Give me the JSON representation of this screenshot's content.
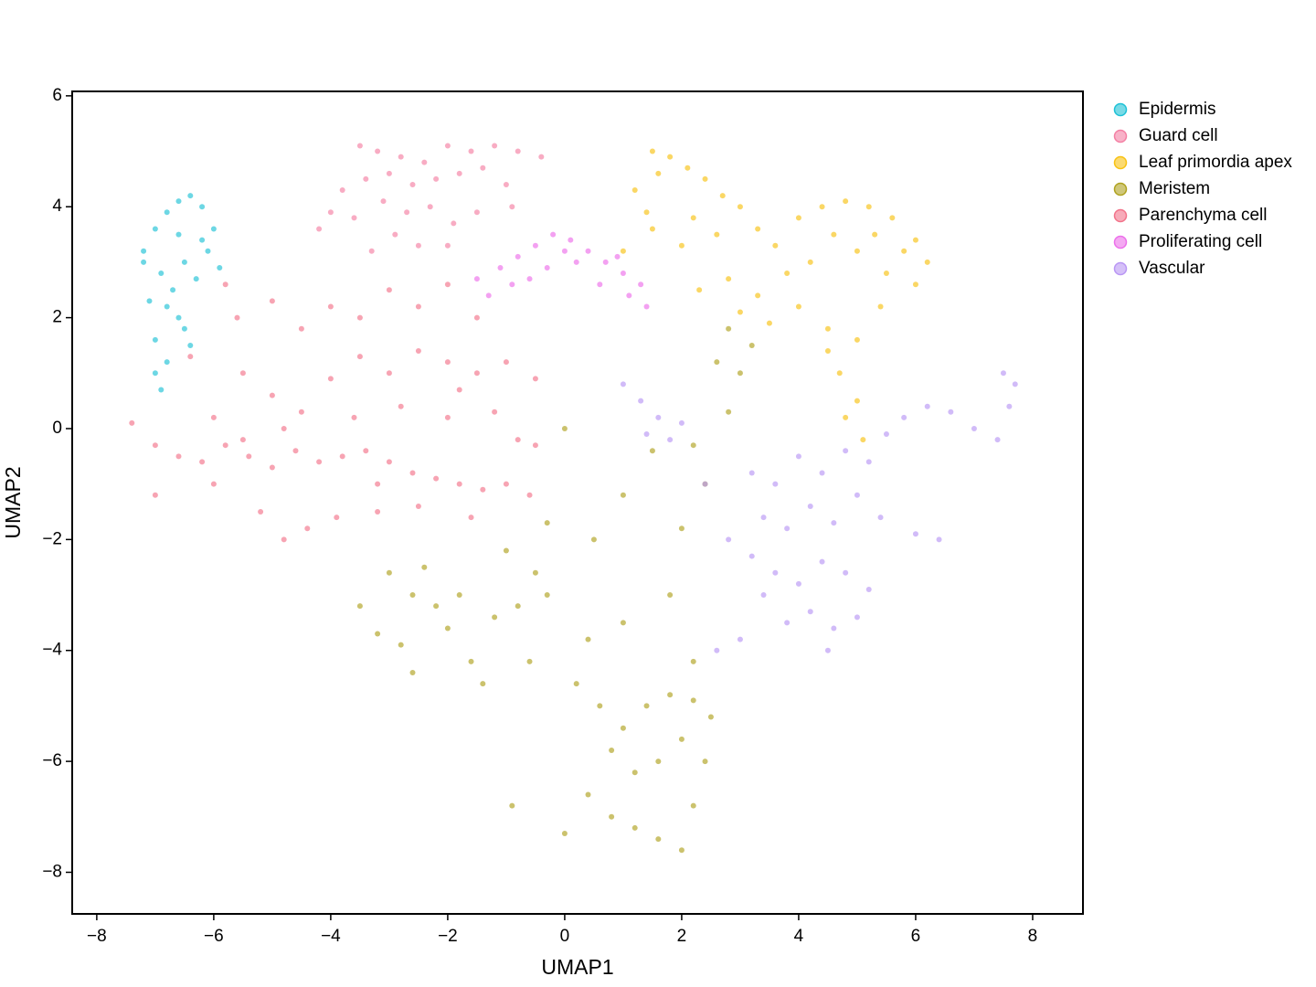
{
  "chart_data": {
    "type": "scatter",
    "x_label": "UMAP1",
    "y_label": "UMAP2",
    "xlim": [
      -8.42,
      8.86
    ],
    "ylim": [
      -8.75,
      6.08
    ],
    "xticks": [
      {
        "value": -8,
        "label": "−8"
      },
      {
        "value": -6,
        "label": "−6"
      },
      {
        "value": -4,
        "label": "−4"
      },
      {
        "value": -2,
        "label": "−2"
      },
      0,
      2,
      4,
      6,
      8
    ],
    "yticks": [
      {
        "value": -8,
        "label": "−8"
      },
      {
        "value": -6,
        "label": "−6"
      },
      {
        "value": -4,
        "label": "−4"
      },
      {
        "value": -2,
        "label": "−2"
      },
      0,
      2,
      4,
      6
    ],
    "grid": false,
    "legend_position": "right",
    "series": [
      {
        "name": "Epidermis",
        "color": "#1EC1D6",
        "x": [
          -7.2,
          -7.0,
          -6.8,
          -6.6,
          -6.4,
          -6.2,
          -6.0,
          -6.1,
          -6.5,
          -6.9,
          -7.1,
          -6.7,
          -6.3,
          -5.9,
          -6.6,
          -7.0,
          -6.8,
          -6.4,
          -7.0,
          -6.9,
          -6.2,
          -6.6,
          -6.8,
          -7.2,
          -6.5
        ],
        "y": [
          3.2,
          3.6,
          3.9,
          4.1,
          4.2,
          4.0,
          3.6,
          3.2,
          3.0,
          2.8,
          2.3,
          2.5,
          2.7,
          2.9,
          2.0,
          1.6,
          1.2,
          1.5,
          1.0,
          0.7,
          3.4,
          3.5,
          2.2,
          3.0,
          1.8
        ]
      },
      {
        "name": "Guard cell",
        "color": "#F47FA3",
        "x": [
          -3.5,
          -3.2,
          -2.8,
          -2.4,
          -2.0,
          -1.6,
          -1.2,
          -0.8,
          -0.4,
          -3.8,
          -4.0,
          -3.4,
          -3.0,
          -2.6,
          -2.2,
          -1.8,
          -1.4,
          -4.2,
          -3.6,
          -3.1,
          -2.7,
          -2.3,
          -1.9,
          -1.5,
          -1.0,
          -2.9,
          -2.5,
          -3.3,
          -0.9,
          -2.0
        ],
        "y": [
          5.1,
          5.0,
          4.9,
          4.8,
          5.1,
          5.0,
          5.1,
          5.0,
          4.9,
          4.3,
          3.9,
          4.5,
          4.6,
          4.4,
          4.5,
          4.6,
          4.7,
          3.6,
          3.8,
          4.1,
          3.9,
          4.0,
          3.7,
          3.9,
          4.4,
          3.5,
          3.3,
          3.2,
          4.0,
          3.3
        ]
      },
      {
        "name": "Leaf primordia apex",
        "color": "#F8C213",
        "x": [
          1.5,
          1.8,
          2.1,
          1.6,
          1.2,
          2.4,
          2.7,
          3.0,
          2.2,
          1.5,
          1.0,
          2.0,
          2.6,
          3.3,
          3.6,
          4.0,
          4.4,
          4.8,
          5.2,
          5.6,
          6.0,
          6.2,
          6.0,
          5.5,
          5.0,
          4.6,
          4.2,
          3.8,
          3.3,
          2.8,
          2.3,
          4.0,
          4.5,
          5.0,
          5.4,
          5.8,
          3.5,
          4.7,
          5.0,
          4.8,
          5.1,
          4.5,
          3.0,
          1.4,
          5.3
        ],
        "y": [
          5.0,
          4.9,
          4.7,
          4.6,
          4.3,
          4.5,
          4.2,
          4.0,
          3.8,
          3.6,
          3.2,
          3.3,
          3.5,
          3.6,
          3.3,
          3.8,
          4.0,
          4.1,
          4.0,
          3.8,
          3.4,
          3.0,
          2.6,
          2.8,
          3.2,
          3.5,
          3.0,
          2.8,
          2.4,
          2.7,
          2.5,
          2.2,
          1.8,
          1.6,
          2.2,
          3.2,
          1.9,
          1.0,
          0.5,
          0.2,
          -0.2,
          1.4,
          2.1,
          3.9,
          3.5
        ]
      },
      {
        "name": "Meristem",
        "color": "#AFA21F",
        "x": [
          -3.5,
          -3.2,
          -2.8,
          -3.0,
          -2.6,
          -2.2,
          -2.4,
          -2.0,
          -1.6,
          -1.4,
          -1.8,
          -1.2,
          -0.8,
          -0.5,
          -0.3,
          -1.0,
          -0.6,
          -2.6,
          0.2,
          0.6,
          1.0,
          1.4,
          1.8,
          2.2,
          2.0,
          1.6,
          1.2,
          0.8,
          0.4,
          0.8,
          1.2,
          1.6,
          2.0,
          2.2,
          2.4,
          2.5,
          0.0,
          -0.9,
          0.4,
          1.0,
          0.5,
          1.0,
          1.5,
          2.0,
          2.4,
          2.8,
          3.0,
          2.6,
          3.2,
          2.8,
          2.2,
          0.0,
          -0.3,
          1.8,
          2.2
        ],
        "y": [
          -3.2,
          -3.7,
          -3.9,
          -2.6,
          -3.0,
          -3.2,
          -2.5,
          -3.6,
          -4.2,
          -4.6,
          -3.0,
          -3.4,
          -3.2,
          -2.6,
          -3.0,
          -2.2,
          -4.2,
          -4.4,
          -4.6,
          -5.0,
          -5.4,
          -5.0,
          -4.8,
          -4.9,
          -5.6,
          -6.0,
          -6.2,
          -5.8,
          -6.6,
          -7.0,
          -7.2,
          -7.4,
          -7.6,
          -6.8,
          -6.0,
          -5.2,
          -7.3,
          -6.8,
          -3.8,
          -3.5,
          -2.0,
          -1.2,
          -0.4,
          -1.8,
          -1.0,
          0.3,
          1.0,
          1.2,
          1.5,
          1.8,
          -0.3,
          0.0,
          -1.7,
          -3.0,
          -4.2
        ]
      },
      {
        "name": "Parenchyma cell",
        "color": "#F2738A",
        "x": [
          -7.4,
          -7.0,
          -6.6,
          -6.2,
          -5.8,
          -5.4,
          -5.0,
          -4.6,
          -4.2,
          -3.8,
          -3.4,
          -3.0,
          -2.6,
          -2.2,
          -1.8,
          -1.4,
          -1.0,
          -0.6,
          -7.0,
          -6.0,
          -5.2,
          -4.8,
          -4.4,
          -3.9,
          -3.2,
          -2.5,
          -1.6,
          -5.5,
          -5.0,
          -4.5,
          -4.0,
          -3.5,
          -3.0,
          -2.5,
          -2.0,
          -1.5,
          -1.0,
          -0.5,
          -5.6,
          -5.0,
          -4.5,
          -4.0,
          -3.5,
          -3.0,
          -2.5,
          -2.0,
          -1.5,
          -6.0,
          -5.5,
          -4.8,
          -3.6,
          -2.8,
          -2.0,
          -1.2,
          -0.5,
          -5.8,
          -3.2,
          -1.8,
          -0.8,
          -6.4
        ],
        "y": [
          0.1,
          -0.3,
          -0.5,
          -0.6,
          -0.3,
          -0.5,
          -0.7,
          -0.4,
          -0.6,
          -0.5,
          -0.4,
          -0.6,
          -0.8,
          -0.9,
          -1.0,
          -1.1,
          -1.0,
          -1.2,
          -1.2,
          -1.0,
          -1.5,
          -2.0,
          -1.8,
          -1.6,
          -1.5,
          -1.4,
          -1.6,
          1.0,
          0.6,
          0.3,
          0.9,
          1.3,
          1.0,
          1.4,
          1.2,
          1.0,
          1.2,
          0.9,
          2.0,
          2.3,
          1.8,
          2.2,
          2.0,
          2.5,
          2.2,
          2.6,
          2.0,
          0.2,
          -0.2,
          0.0,
          0.2,
          0.4,
          0.2,
          0.3,
          -0.3,
          2.6,
          -1.0,
          0.7,
          -0.2,
          1.3
        ]
      },
      {
        "name": "Proliferating cell",
        "color": "#EC6FEA",
        "x": [
          -1.5,
          -1.1,
          -0.8,
          -0.5,
          -0.2,
          0.1,
          0.4,
          0.7,
          1.0,
          1.3,
          -0.9,
          -0.3,
          0.2,
          0.6,
          1.1,
          -1.3,
          0.0,
          -0.6,
          0.9,
          1.4
        ],
        "y": [
          2.7,
          2.9,
          3.1,
          3.3,
          3.5,
          3.4,
          3.2,
          3.0,
          2.8,
          2.6,
          2.6,
          2.9,
          3.0,
          2.6,
          2.4,
          2.4,
          3.2,
          2.7,
          3.1,
          2.2
        ]
      },
      {
        "name": "Vascular",
        "color": "#B996F4",
        "x": [
          1.0,
          1.3,
          1.6,
          1.8,
          1.4,
          2.0,
          3.2,
          3.6,
          4.0,
          4.4,
          4.8,
          5.2,
          3.4,
          3.8,
          4.2,
          4.6,
          5.0,
          5.4,
          2.8,
          3.2,
          3.6,
          4.0,
          4.4,
          4.8,
          5.2,
          5.0,
          4.6,
          4.2,
          3.8,
          3.4,
          3.0,
          2.6,
          4.5,
          6.0,
          6.4,
          5.8,
          6.2,
          6.6,
          7.0,
          7.4,
          7.6,
          7.7,
          7.5,
          5.5,
          2.4
        ],
        "y": [
          0.8,
          0.5,
          0.2,
          -0.2,
          -0.1,
          0.1,
          -0.8,
          -1.0,
          -0.5,
          -0.8,
          -0.4,
          -0.6,
          -1.6,
          -1.8,
          -1.4,
          -1.7,
          -1.2,
          -1.6,
          -2.0,
          -2.3,
          -2.6,
          -2.8,
          -2.4,
          -2.6,
          -2.9,
          -3.4,
          -3.6,
          -3.3,
          -3.5,
          -3.0,
          -3.8,
          -4.0,
          -4.0,
          -1.9,
          -2.0,
          0.2,
          0.4,
          0.3,
          0.0,
          -0.2,
          0.4,
          0.8,
          1.0,
          -0.1,
          -1.0
        ]
      }
    ]
  }
}
